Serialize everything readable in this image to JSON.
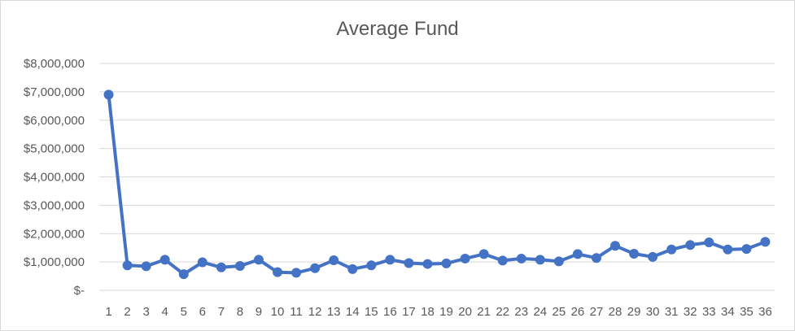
{
  "chart_data": {
    "type": "line",
    "title": "Average Fund",
    "xlabel": "",
    "ylabel": "",
    "x": [
      1,
      2,
      3,
      4,
      5,
      6,
      7,
      8,
      9,
      10,
      11,
      12,
      13,
      14,
      15,
      16,
      17,
      18,
      19,
      20,
      21,
      22,
      23,
      24,
      25,
      26,
      27,
      28,
      29,
      30,
      31,
      32,
      33,
      34,
      35,
      36
    ],
    "y_ticks": [
      "$-",
      "$1,000,000",
      "$2,000,000",
      "$3,000,000",
      "$4,000,000",
      "$5,000,000",
      "$6,000,000",
      "$7,000,000",
      "$8,000,000"
    ],
    "ylim": [
      0,
      8000000
    ],
    "grid": true,
    "legend": "none",
    "color": "#4472C4",
    "series": [
      {
        "values": [
          6900000,
          880000,
          850000,
          1080000,
          570000,
          990000,
          810000,
          860000,
          1080000,
          640000,
          620000,
          780000,
          1060000,
          750000,
          880000,
          1080000,
          960000,
          930000,
          950000,
          1120000,
          1280000,
          1050000,
          1120000,
          1080000,
          1020000,
          1280000,
          1140000,
          1570000,
          1290000,
          1180000,
          1440000,
          1600000,
          1690000,
          1440000,
          1460000,
          1710000
        ]
      }
    ]
  }
}
